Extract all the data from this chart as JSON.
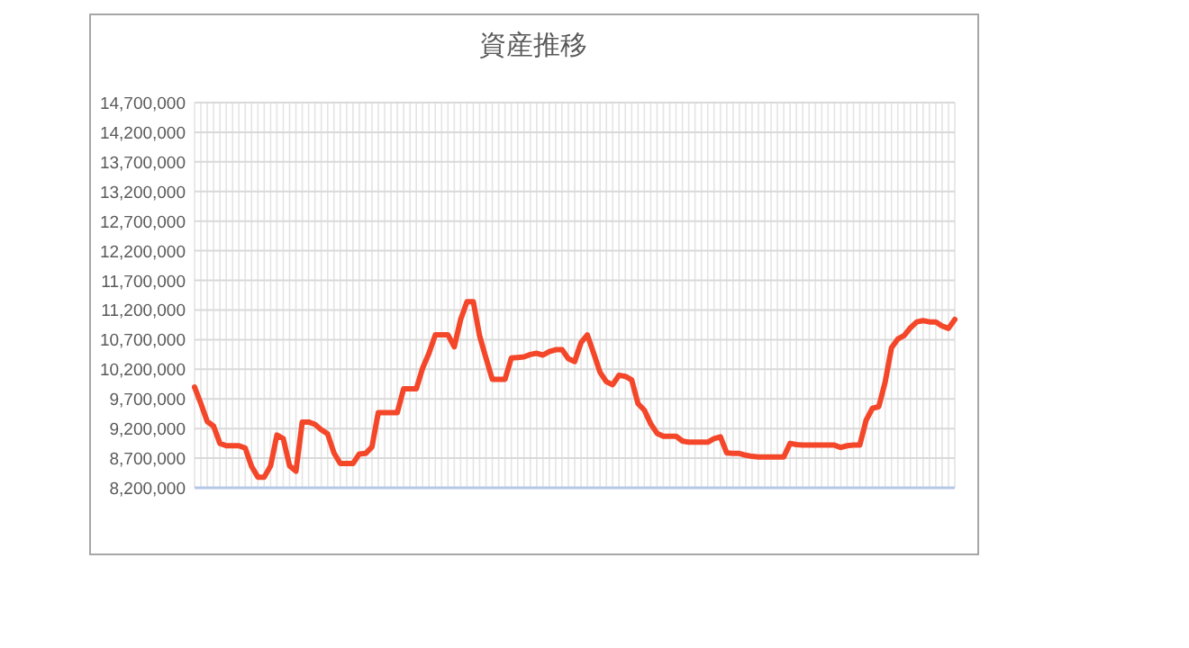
{
  "chart_data": {
    "type": "line",
    "title": "資産推移",
    "color": "#f4472a",
    "grid": true,
    "ylim": [
      8200000,
      14700000
    ],
    "yticks": [
      {
        "value": 8200000,
        "label": "8,200,000"
      },
      {
        "value": 8700000,
        "label": "8,700,000"
      },
      {
        "value": 9200000,
        "label": "9,200,000"
      },
      {
        "value": 9700000,
        "label": "9,700,000"
      },
      {
        "value": 10200000,
        "label": "10,200,000"
      },
      {
        "value": 10700000,
        "label": "10,700,000"
      },
      {
        "value": 11200000,
        "label": "11,200,000"
      },
      {
        "value": 11700000,
        "label": "11,700,000"
      },
      {
        "value": 12200000,
        "label": "12,200,000"
      },
      {
        "value": 12700000,
        "label": "12,700,000"
      },
      {
        "value": 13200000,
        "label": "13,200,000"
      },
      {
        "value": 13700000,
        "label": "13,700,000"
      },
      {
        "value": 14200000,
        "label": "14,200,000"
      },
      {
        "value": 14700000,
        "label": "14,700,000"
      }
    ],
    "categories": [
      null,
      null,
      null,
      null,
      null,
      null,
      null,
      null,
      null,
      null,
      null,
      null,
      null,
      null,
      null,
      null,
      null,
      null,
      null,
      null,
      null,
      null,
      null,
      null,
      null,
      null,
      null,
      null,
      null,
      null,
      null,
      null,
      null,
      null,
      null,
      null,
      null,
      null,
      null,
      null,
      null,
      null,
      null,
      null,
      null,
      null,
      null,
      null,
      null,
      null,
      null,
      null,
      null,
      null,
      null,
      null,
      null,
      null,
      null,
      null,
      null,
      null,
      null,
      null,
      null,
      null,
      null,
      null,
      null,
      null,
      null,
      null,
      null,
      null,
      null,
      null,
      null,
      null,
      null,
      null,
      null,
      null,
      null,
      null,
      null,
      null,
      null,
      null,
      null,
      null,
      null,
      null,
      null,
      null,
      null,
      null,
      null,
      null,
      null,
      null,
      null,
      null,
      null,
      null,
      null,
      null,
      null,
      null,
      null,
      null,
      null,
      null,
      null,
      null,
      null,
      null,
      null,
      null,
      null,
      null,
      null
    ],
    "values": [
      9900000,
      9620000,
      9320000,
      9240000,
      8950000,
      8910000,
      8910000,
      8910000,
      8870000,
      8560000,
      8380000,
      8380000,
      8570000,
      9090000,
      9030000,
      8570000,
      8480000,
      9310000,
      9310000,
      9270000,
      9180000,
      9110000,
      8790000,
      8610000,
      8610000,
      8610000,
      8770000,
      8780000,
      8890000,
      9470000,
      9470000,
      9470000,
      9470000,
      9870000,
      9870000,
      9870000,
      10220000,
      10470000,
      10780000,
      10780000,
      10780000,
      10580000,
      11040000,
      11340000,
      11340000,
      10760000,
      10390000,
      10030000,
      10030000,
      10030000,
      10390000,
      10400000,
      10410000,
      10450000,
      10470000,
      10440000,
      10500000,
      10530000,
      10530000,
      10380000,
      10330000,
      10650000,
      10780000,
      10470000,
      10150000,
      9990000,
      9940000,
      10100000,
      10080000,
      10020000,
      9620000,
      9510000,
      9280000,
      9120000,
      9070000,
      9070000,
      9070000,
      8990000,
      8970000,
      8970000,
      8970000,
      8970000,
      9030000,
      9060000,
      8790000,
      8780000,
      8780000,
      8750000,
      8730000,
      8720000,
      8720000,
      8720000,
      8720000,
      8720000,
      8950000,
      8930000,
      8920000,
      8920000,
      8920000,
      8920000,
      8920000,
      8920000,
      8880000,
      8910000,
      8920000,
      8920000,
      9340000,
      9540000,
      9570000,
      9980000,
      10560000,
      10710000,
      10770000,
      10900000,
      11000000,
      11020000,
      11000000,
      11000000,
      10930000,
      10890000,
      11040000
    ]
  }
}
